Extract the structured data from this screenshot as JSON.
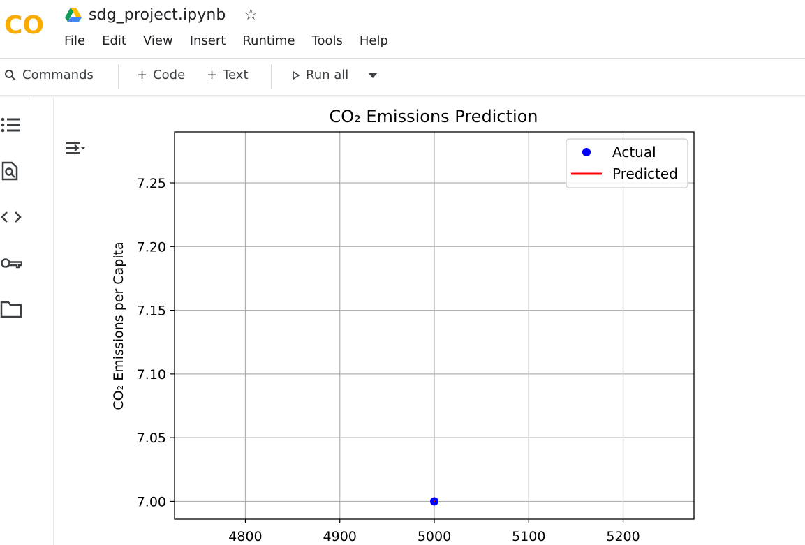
{
  "app": {
    "logo_text": "CO",
    "notebook_title": "sdg_project.ipynb"
  },
  "menu": [
    "File",
    "Edit",
    "View",
    "Insert",
    "Runtime",
    "Tools",
    "Help"
  ],
  "toolbar": {
    "commands": "Commands",
    "add_code": "Code",
    "add_text": "Text",
    "run_all": "Run all"
  },
  "sidebar_icons": [
    "table-of-contents-icon",
    "find-replace-icon",
    "code-snippets-icon",
    "secrets-key-icon",
    "files-folder-icon"
  ],
  "colors": {
    "colab_orange": "#f9ab00",
    "colab_orange_dark": "#e8710a",
    "actual": "#0000ff",
    "predicted": "#ff0000"
  },
  "chart_data": {
    "type": "scatter",
    "title": "CO₂ Emissions Prediction",
    "xlabel": "",
    "ylabel": "CO₂ Emissions per Capita",
    "xlim": [
      4725,
      5275
    ],
    "ylim": [
      6.986,
      7.29
    ],
    "xticks": [
      4800,
      4900,
      5000,
      5100,
      5200
    ],
    "yticks": [
      7.0,
      7.05,
      7.1,
      7.15,
      7.2,
      7.25
    ],
    "ytick_labels": [
      "7.00",
      "7.05",
      "7.10",
      "7.15",
      "7.20",
      "7.25"
    ],
    "grid": true,
    "legend_position": "top-right",
    "series": [
      {
        "name": "Actual",
        "kind": "scatter",
        "color": "#0000ff",
        "points": [
          [
            5000,
            7.0
          ]
        ]
      },
      {
        "name": "Predicted",
        "kind": "line",
        "color": "#ff0000",
        "points": [
          [
            5000,
            7.0
          ]
        ]
      }
    ]
  }
}
